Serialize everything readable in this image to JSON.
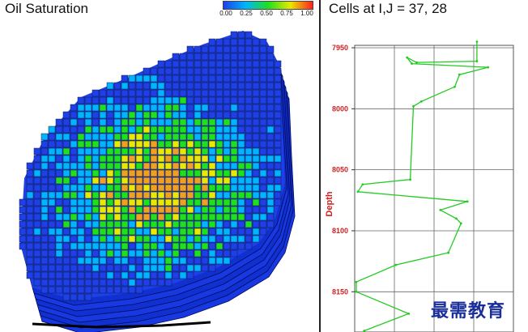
{
  "left_panel": {
    "title": "Oil Saturation",
    "colorbar": {
      "ticks": [
        "0.00",
        "0.25",
        "0.50",
        "0.75",
        "1.00"
      ],
      "colors": [
        "#1f3fe8",
        "#00b5ff",
        "#1fe01f",
        "#e8e800",
        "#ff2020"
      ]
    }
  },
  "right_panel": {
    "title": "Cells at I,J = 37, 28",
    "ylabel": "Depth",
    "ytick_labels": [
      "7950",
      "8000",
      "8050",
      "8100",
      "8150"
    ]
  },
  "chart_data": {
    "type": "line",
    "title": "Cells at I,J = 37, 28",
    "xlabel": "",
    "ylabel": "Depth",
    "ylim": [
      7948,
      8183
    ],
    "y_inverted": true,
    "xlim": [
      0,
      1
    ],
    "series": [
      {
        "color": "#22cc22",
        "points": [
          {
            "x": 0.77,
            "y": 7945
          },
          {
            "x": 0.77,
            "y": 7961
          },
          {
            "x": 0.39,
            "y": 7962
          },
          {
            "x": 0.33,
            "y": 7958
          },
          {
            "x": 0.36,
            "y": 7963
          },
          {
            "x": 0.84,
            "y": 7966
          },
          {
            "x": 0.66,
            "y": 7972
          },
          {
            "x": 0.63,
            "y": 7982
          },
          {
            "x": 0.42,
            "y": 7994
          },
          {
            "x": 0.37,
            "y": 7998
          },
          {
            "x": 0.35,
            "y": 8058
          },
          {
            "x": 0.05,
            "y": 8062
          },
          {
            "x": 0.02,
            "y": 8068
          },
          {
            "x": 0.71,
            "y": 8076
          },
          {
            "x": 0.54,
            "y": 8083
          },
          {
            "x": 0.64,
            "y": 8090
          },
          {
            "x": 0.67,
            "y": 8094
          },
          {
            "x": 0.59,
            "y": 8118
          },
          {
            "x": 0.26,
            "y": 8128
          },
          {
            "x": 0.01,
            "y": 8142
          },
          {
            "x": 0.01,
            "y": 8150
          },
          {
            "x": 0.34,
            "y": 8168
          },
          {
            "x": 0.06,
            "y": 8182
          }
        ]
      }
    ],
    "grid": true
  },
  "watermark": "最需教育"
}
